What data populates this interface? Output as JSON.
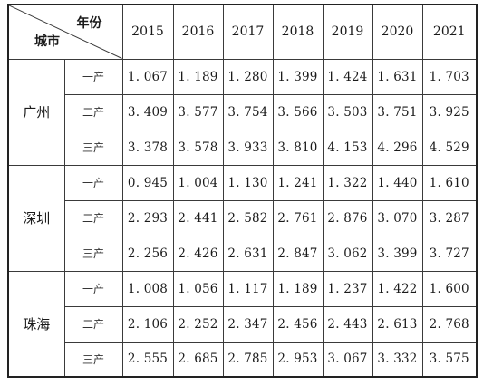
{
  "header": {
    "year_label": "年份",
    "city_label": "城市"
  },
  "years": [
    "2015",
    "2016",
    "2017",
    "2018",
    "2019",
    "2020",
    "2021"
  ],
  "cities": [
    {
      "name": "广州",
      "rows": [
        {
          "sector": "一产",
          "values": [
            "1. 067",
            "1. 189",
            "1. 280",
            "1. 399",
            "1. 424",
            "1. 631",
            "1. 703"
          ]
        },
        {
          "sector": "二产",
          "values": [
            "3. 409",
            "3. 577",
            "3. 754",
            "3. 566",
            "3. 503",
            "3. 751",
            "3. 925"
          ]
        },
        {
          "sector": "三产",
          "values": [
            "3. 378",
            "3. 578",
            "3. 933",
            "3. 810",
            "4. 153",
            "4. 296",
            "4. 529"
          ]
        }
      ]
    },
    {
      "name": "深圳",
      "rows": [
        {
          "sector": "一产",
          "values": [
            "0. 945",
            "1. 004",
            "1. 130",
            "1. 241",
            "1. 322",
            "1. 440",
            "1. 610"
          ]
        },
        {
          "sector": "二产",
          "values": [
            "2. 293",
            "2. 441",
            "2. 582",
            "2. 761",
            "2. 876",
            "3. 070",
            "3. 287"
          ]
        },
        {
          "sector": "三产",
          "values": [
            "2. 256",
            "2. 426",
            "2. 631",
            "2. 847",
            "3. 062",
            "3. 399",
            "3. 727"
          ]
        }
      ]
    },
    {
      "name": "珠海",
      "rows": [
        {
          "sector": "一产",
          "values": [
            "1. 008",
            "1. 056",
            "1. 117",
            "1. 189",
            "1. 237",
            "1. 422",
            "1. 600"
          ]
        },
        {
          "sector": "二产",
          "values": [
            "2. 106",
            "2. 252",
            "2. 347",
            "2. 456",
            "2. 443",
            "2. 613",
            "2. 768"
          ]
        },
        {
          "sector": "三产",
          "values": [
            "2. 555",
            "2. 685",
            "2. 785",
            "2. 953",
            "3. 067",
            "3. 332",
            "3. 575"
          ]
        }
      ]
    }
  ]
}
